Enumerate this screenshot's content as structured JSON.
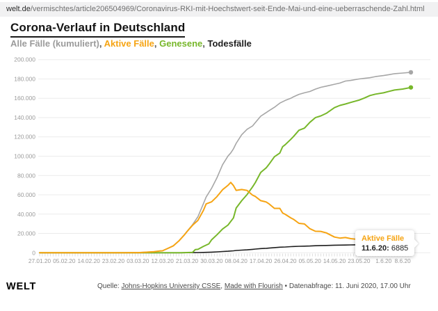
{
  "browser": {
    "url_domain": "welt.de",
    "url_path": "/vermischtes/article206504969/Coronavirus-RKI-mit-Hoechstwert-seit-Ende-Mai-und-eine-ueberraschende-Zahl.html"
  },
  "header": {
    "title": "Corona-Verlauf in Deutschland"
  },
  "legend": {
    "items": [
      {
        "label": "Alle Fälle (kumuliert)",
        "color": "#9b9b9b"
      },
      {
        "label": "Aktive Fälle",
        "color": "#f6a413"
      },
      {
        "label": "Genesene",
        "color": "#77b72a"
      },
      {
        "label": "Todesfälle",
        "color": "#1d1d1d"
      }
    ],
    "separator": ", "
  },
  "tooltip": {
    "title": "Aktive Fälle",
    "title_color": "#f6a413",
    "date": "11.6.20:",
    "value": "6885"
  },
  "footer": {
    "logo": "WELT",
    "source_prefix": "Quelle: ",
    "source_link1": "Johns-Hopkins University CSSE",
    "source_sep": ", ",
    "source_link2": "Made with Flourish",
    "source_suffix": " • Datenabfrage: 11. Juni 2020, 17.00 Uhr"
  },
  "chart_data": {
    "type": "line",
    "title": "Corona-Verlauf in Deutschland",
    "xlabel": "",
    "ylabel": "",
    "ylim": [
      0,
      200000
    ],
    "grid": "horizontal",
    "legend_position": "top-inline",
    "style": {
      "grid_color": "#ebebeb",
      "tick_color": "#d6d6d6",
      "axis_text_color": "#9a9a9a"
    },
    "y_ticks": [
      {
        "value": 0,
        "label": "0"
      },
      {
        "value": 20000,
        "label": "20.000"
      },
      {
        "value": 40000,
        "label": "40.000"
      },
      {
        "value": 60000,
        "label": "60.000"
      },
      {
        "value": 80000,
        "label": "80.000"
      },
      {
        "value": 100000,
        "label": "100.000"
      },
      {
        "value": 120000,
        "label": "120.000"
      },
      {
        "value": 140000,
        "label": "140.000"
      },
      {
        "value": 160000,
        "label": "160.000"
      },
      {
        "value": 180000,
        "label": "180.000"
      },
      {
        "value": 200000,
        "label": "200.000"
      }
    ],
    "x_axis": {
      "start_date": "27.01.20",
      "end_date": "11.06.20",
      "total_days": 136,
      "ticks": [
        {
          "day": 0,
          "label": "27.01.20"
        },
        {
          "day": 9,
          "label": "05.02.20"
        },
        {
          "day": 18,
          "label": "14.02.20"
        },
        {
          "day": 27,
          "label": "23.02.20"
        },
        {
          "day": 36,
          "label": "03.03.20"
        },
        {
          "day": 45,
          "label": "12.03.20"
        },
        {
          "day": 54,
          "label": "21.03.20"
        },
        {
          "day": 63,
          "label": "30.03.20"
        },
        {
          "day": 72,
          "label": "08.04.20"
        },
        {
          "day": 81,
          "label": "17.04.20"
        },
        {
          "day": 90,
          "label": "26.04.20"
        },
        {
          "day": 99,
          "label": "05.05.20"
        },
        {
          "day": 108,
          "label": "14.05.20"
        },
        {
          "day": 117,
          "label": "23.05.20"
        },
        {
          "day": 126,
          "label": "1.6.20"
        },
        {
          "day": 133,
          "label": "8.6.20"
        }
      ]
    },
    "draw_order": [
      0,
      3,
      2,
      1
    ],
    "series": [
      {
        "id": "alle-faelle",
        "name": "Alle Fälle (kumuliert)",
        "color": "#a6a6a6",
        "width": 1.6,
        "points": [
          [
            0,
            1
          ],
          [
            4,
            5
          ],
          [
            9,
            12
          ],
          [
            14,
            14
          ],
          [
            18,
            16
          ],
          [
            23,
            16
          ],
          [
            27,
            16
          ],
          [
            31,
            46
          ],
          [
            34,
            130
          ],
          [
            36,
            196
          ],
          [
            38,
            482
          ],
          [
            40,
            799
          ],
          [
            42,
            1176
          ],
          [
            44,
            1908
          ],
          [
            45,
            2078
          ],
          [
            47,
            4585
          ],
          [
            49,
            7272
          ],
          [
            51,
            12327
          ],
          [
            53,
            18610
          ],
          [
            54,
            22213
          ],
          [
            56,
            29056
          ],
          [
            58,
            37323
          ],
          [
            60,
            50871
          ],
          [
            61,
            57695
          ],
          [
            63,
            66885
          ],
          [
            65,
            77872
          ],
          [
            67,
            91159
          ],
          [
            69,
            100123
          ],
          [
            70,
            103374
          ],
          [
            71,
            107663
          ],
          [
            72,
            113296
          ],
          [
            74,
            122171
          ],
          [
            76,
            127854
          ],
          [
            78,
            131359
          ],
          [
            79,
            134753
          ],
          [
            81,
            141397
          ],
          [
            83,
            145184
          ],
          [
            84,
            147065
          ],
          [
            86,
            150648
          ],
          [
            88,
            154999
          ],
          [
            90,
            157770
          ],
          [
            92,
            159912
          ],
          [
            93,
            161539
          ],
          [
            95,
            164077
          ],
          [
            97,
            165664
          ],
          [
            99,
            167007
          ],
          [
            101,
            169430
          ],
          [
            103,
            171324
          ],
          [
            105,
            172576
          ],
          [
            108,
            174478
          ],
          [
            110,
            175752
          ],
          [
            112,
            177778
          ],
          [
            114,
            178473
          ],
          [
            117,
            179986
          ],
          [
            119,
            180600
          ],
          [
            121,
            181288
          ],
          [
            123,
            182452
          ],
          [
            126,
            183494
          ],
          [
            128,
            184472
          ],
          [
            130,
            185450
          ],
          [
            133,
            186109
          ],
          [
            136,
            186866
          ]
        ]
      },
      {
        "id": "aktive-faelle",
        "name": "Aktive Fälle",
        "color": "#f6a413",
        "width": 2,
        "points": [
          [
            0,
            1
          ],
          [
            4,
            5
          ],
          [
            9,
            12
          ],
          [
            14,
            14
          ],
          [
            18,
            15
          ],
          [
            23,
            2
          ],
          [
            27,
            2
          ],
          [
            31,
            32
          ],
          [
            34,
            114
          ],
          [
            36,
            180
          ],
          [
            38,
            466
          ],
          [
            40,
            783
          ],
          [
            42,
            1160
          ],
          [
            44,
            1890
          ],
          [
            45,
            2050
          ],
          [
            47,
            4509
          ],
          [
            49,
            7188
          ],
          [
            51,
            12271
          ],
          [
            53,
            18452
          ],
          [
            54,
            21896
          ],
          [
            56,
            28480
          ],
          [
            58,
            33570
          ],
          [
            60,
            43871
          ],
          [
            61,
            50604
          ],
          [
            63,
            52740
          ],
          [
            65,
            58252
          ],
          [
            67,
            65309
          ],
          [
            69,
            69839
          ],
          [
            70,
            72864
          ],
          [
            71,
            69566
          ],
          [
            72,
            64647
          ],
          [
            74,
            65491
          ],
          [
            76,
            64532
          ],
          [
            78,
            59664
          ],
          [
            79,
            58349
          ],
          [
            81,
            53931
          ],
          [
            83,
            52598
          ],
          [
            84,
            50703
          ],
          [
            86,
            45933
          ],
          [
            88,
            45939
          ],
          [
            89,
            41200
          ],
          [
            90,
            39794
          ],
          [
            92,
            36198
          ],
          [
            93,
            34672
          ],
          [
            95,
            30441
          ],
          [
            97,
            29798
          ],
          [
            99,
            24914
          ],
          [
            101,
            22255
          ],
          [
            103,
            22114
          ],
          [
            105,
            20607
          ],
          [
            108,
            16294
          ],
          [
            110,
            15214
          ],
          [
            112,
            15760
          ],
          [
            114,
            14648
          ],
          [
            117,
            13638
          ],
          [
            119,
            11998
          ],
          [
            121,
            10129
          ],
          [
            123,
            9637
          ],
          [
            126,
            9257
          ],
          [
            128,
            8689
          ],
          [
            130,
            8312
          ],
          [
            133,
            7858
          ],
          [
            136,
            6885
          ]
        ]
      },
      {
        "id": "genesene",
        "name": "Genesene",
        "color": "#77b72a",
        "width": 2,
        "points": [
          [
            0,
            0
          ],
          [
            18,
            1
          ],
          [
            27,
            14
          ],
          [
            36,
            16
          ],
          [
            45,
            25
          ],
          [
            49,
            67
          ],
          [
            52,
            105
          ],
          [
            54,
            233
          ],
          [
            56,
            453
          ],
          [
            57,
            3243
          ],
          [
            58,
            3547
          ],
          [
            60,
            6658
          ],
          [
            62,
            9211
          ],
          [
            63,
            13500
          ],
          [
            65,
            18700
          ],
          [
            67,
            24575
          ],
          [
            69,
            28700
          ],
          [
            71,
            36081
          ],
          [
            72,
            46300
          ],
          [
            74,
            53913
          ],
          [
            76,
            60300
          ],
          [
            78,
            68200
          ],
          [
            79,
            72600
          ],
          [
            81,
            83114
          ],
          [
            83,
            88000
          ],
          [
            84,
            91500
          ],
          [
            86,
            99400
          ],
          [
            88,
            103300
          ],
          [
            89,
            109800
          ],
          [
            90,
            112000
          ],
          [
            92,
            117400
          ],
          [
            93,
            120400
          ],
          [
            95,
            126900
          ],
          [
            97,
            129000
          ],
          [
            99,
            135100
          ],
          [
            101,
            139900
          ],
          [
            103,
            141700
          ],
          [
            105,
            144400
          ],
          [
            108,
            150300
          ],
          [
            110,
            152600
          ],
          [
            112,
            154011
          ],
          [
            114,
            155681
          ],
          [
            117,
            158087
          ],
          [
            119,
            160300
          ],
          [
            121,
            162820
          ],
          [
            123,
            164245
          ],
          [
            126,
            165632
          ],
          [
            128,
            167148
          ],
          [
            130,
            168480
          ],
          [
            133,
            169556
          ],
          [
            136,
            171209
          ]
        ]
      },
      {
        "id": "todesfaelle",
        "name": "Todesfälle",
        "color": "#1d1d1d",
        "width": 1.6,
        "points": [
          [
            0,
            0
          ],
          [
            40,
            0
          ],
          [
            44,
            2
          ],
          [
            45,
            3
          ],
          [
            47,
            9
          ],
          [
            49,
            17
          ],
          [
            51,
            28
          ],
          [
            54,
            84
          ],
          [
            56,
            123
          ],
          [
            58,
            206
          ],
          [
            60,
            342
          ],
          [
            61,
            433
          ],
          [
            63,
            645
          ],
          [
            65,
            920
          ],
          [
            67,
            1275
          ],
          [
            69,
            1584
          ],
          [
            71,
            2016
          ],
          [
            72,
            2349
          ],
          [
            74,
            2767
          ],
          [
            76,
            3022
          ],
          [
            78,
            3495
          ],
          [
            79,
            3804
          ],
          [
            81,
            4352
          ],
          [
            83,
            4586
          ],
          [
            84,
            4862
          ],
          [
            86,
            5315
          ],
          [
            88,
            5760
          ],
          [
            90,
            5976
          ],
          [
            92,
            6314
          ],
          [
            93,
            6467
          ],
          [
            95,
            6736
          ],
          [
            97,
            6866
          ],
          [
            99,
            6993
          ],
          [
            101,
            7275
          ],
          [
            103,
            7510
          ],
          [
            105,
            7569
          ],
          [
            108,
            7884
          ],
          [
            110,
            7938
          ],
          [
            112,
            8007
          ],
          [
            114,
            8144
          ],
          [
            117,
            8261
          ],
          [
            119,
            8302
          ],
          [
            121,
            8339
          ],
          [
            123,
            8570
          ],
          [
            126,
            8605
          ],
          [
            128,
            8635
          ],
          [
            130,
            8658
          ],
          [
            133,
            8695
          ],
          [
            136,
            8772
          ]
        ]
      }
    ]
  }
}
